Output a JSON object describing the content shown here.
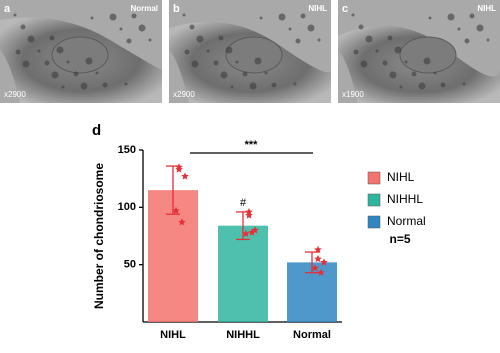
{
  "panels": [
    {
      "label": "a",
      "condition": "Normal",
      "magnification": "x2900"
    },
    {
      "label": "b",
      "condition": "NIHL",
      "magnification": "x2900"
    },
    {
      "label": "c",
      "condition": "NIHL",
      "magnification": "x1900"
    }
  ],
  "chart_data": {
    "type": "bar",
    "panel_label": "d",
    "ylabel": "Number of chondriosome",
    "categories": [
      "NIHL",
      "NIHHL",
      "Normal"
    ],
    "values": [
      115,
      84,
      52
    ],
    "errors": [
      21,
      12,
      9
    ],
    "points": [
      [
        135,
        133,
        127,
        97,
        87
      ],
      [
        96,
        93,
        80,
        77,
        78
      ],
      [
        63,
        55,
        52,
        47,
        43
      ]
    ],
    "colors": [
      "#f4736d",
      "#2fb59f",
      "#2f86c3"
    ],
    "point_color": "#e5303a",
    "ylim": [
      0,
      150
    ],
    "yticks": [
      50,
      100,
      150
    ],
    "significance": "***",
    "annotation": "#",
    "sample_size": "n=5"
  }
}
